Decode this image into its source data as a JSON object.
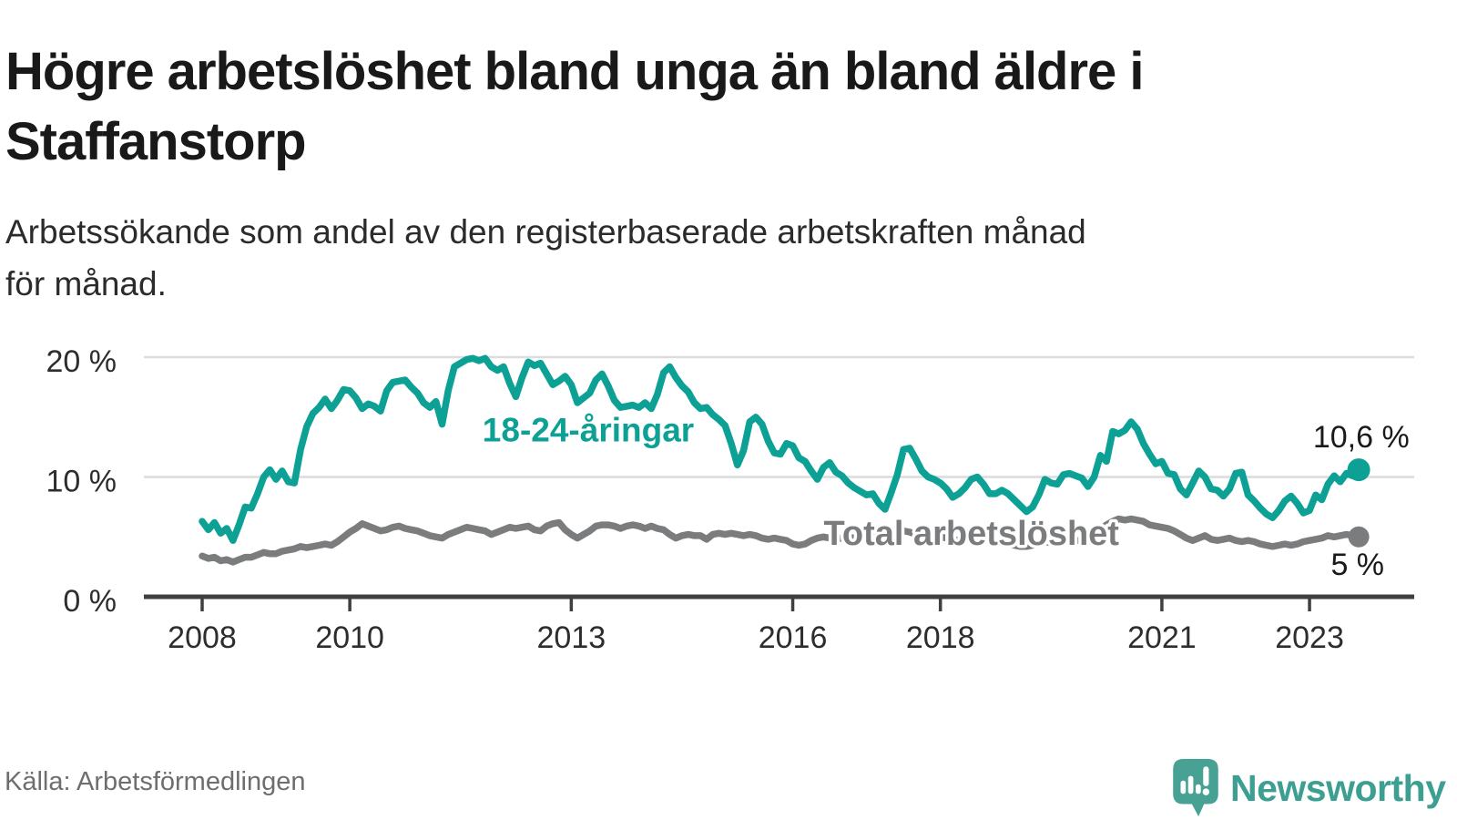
{
  "header": {
    "title_lines": [
      "Högre arbetslöshet bland unga än bland äldre i",
      "Staffanstorp"
    ],
    "subtitle_lines": [
      "Arbetssökande som andel av den registerbaserade arbetskraften månad",
      "för månad."
    ]
  },
  "footer": {
    "source": "Källa: Arbetsförmedlingen",
    "brand": "Newsworthy"
  },
  "colors": {
    "youth_line": "#0DA196",
    "total_line": "#7B7C7E",
    "axis": "#3F3F3F",
    "grid": "#DCDCDC",
    "tick_text": "#2D2D2D",
    "value_text": "#1A1A1A",
    "brand_teal": "#47A295"
  },
  "chart_data": {
    "type": "line",
    "y_unit": "%",
    "x_unit": "year, monthly observations",
    "x_ticks": [
      2008,
      2010,
      2013,
      2016,
      2018,
      2021,
      2023
    ],
    "y_ticks": [
      {
        "value": 0,
        "label": "0 %"
      },
      {
        "value": 10,
        "label": "10 %"
      },
      {
        "value": 20,
        "label": "20 %"
      }
    ],
    "ylim": [
      0,
      21.5
    ],
    "grid": "horizontal",
    "legend_position": "inline-labels",
    "series": [
      {
        "name": "18-24-åringar",
        "color": "#0DA196",
        "line_label": {
          "text": "18-24-åringar",
          "year": 2013.23,
          "pct": 13.9
        },
        "end_label": {
          "text": "10,6 %",
          "year": 2023.7,
          "pct": 13.3
        },
        "end_value": 10.6,
        "start_year": 2008,
        "frequency": "monthly",
        "values": [
          6.3,
          5.6,
          6.2,
          5.3,
          5.7,
          4.7,
          6.0,
          7.5,
          7.4,
          8.6,
          10.0,
          10.6,
          9.8,
          10.5,
          9.6,
          9.5,
          12.3,
          14.2,
          15.3,
          15.8,
          16.5,
          15.7,
          16.4,
          17.3,
          17.2,
          16.6,
          15.7,
          16.1,
          15.9,
          15.5,
          17.2,
          17.9,
          18.0,
          18.1,
          17.5,
          17.0,
          16.2,
          15.8,
          16.3,
          14.4,
          17.2,
          19.2,
          19.5,
          19.8,
          19.9,
          19.7,
          19.9,
          19.2,
          18.9,
          19.2,
          17.8,
          16.7,
          18.3,
          19.6,
          19.3,
          19.5,
          18.6,
          17.7,
          18.0,
          18.4,
          17.7,
          16.2,
          16.6,
          17.0,
          18.1,
          18.6,
          17.6,
          16.4,
          15.8,
          15.9,
          16.0,
          15.8,
          16.2,
          15.7,
          16.9,
          18.7,
          19.2,
          18.3,
          17.6,
          17.1,
          16.2,
          15.7,
          15.8,
          15.2,
          14.8,
          14.3,
          12.8,
          11.0,
          12.2,
          14.6,
          15.0,
          14.4,
          13.0,
          12.0,
          11.9,
          12.8,
          12.6,
          11.6,
          11.3,
          10.5,
          9.8,
          10.8,
          11.2,
          10.4,
          10.1,
          9.5,
          9.1,
          8.8,
          8.5,
          8.6,
          7.8,
          7.3,
          8.7,
          10.2,
          12.3,
          12.4,
          11.5,
          10.5,
          10.0,
          9.8,
          9.5,
          9.0,
          8.3,
          8.6,
          9.1,
          9.8,
          10.0,
          9.4,
          8.6,
          8.6,
          8.9,
          8.6,
          8.1,
          7.6,
          7.1,
          7.5,
          8.5,
          9.8,
          9.5,
          9.4,
          10.2,
          10.3,
          10.1,
          9.9,
          9.2,
          10.0,
          11.8,
          11.3,
          13.8,
          13.6,
          13.9,
          14.6,
          14.0,
          12.8,
          11.9,
          11.1,
          11.3,
          10.3,
          10.2,
          9.0,
          8.5,
          9.5,
          10.5,
          10.0,
          9.0,
          8.9,
          8.4,
          9.0,
          10.3,
          10.4,
          8.5,
          8.0,
          7.4,
          6.9,
          6.6,
          7.2,
          8.0,
          8.4,
          7.8,
          7.0,
          7.2,
          8.5,
          8.1,
          9.4,
          10.1,
          9.6,
          10.3,
          10.1,
          10.6
        ]
      },
      {
        "name": "Total arbetslöshet",
        "color": "#7B7C7E",
        "line_label": {
          "text": "Total arbetslöshet",
          "year": 2018.42,
          "pct": 5.25
        },
        "end_label": {
          "text": "5 %",
          "year": 2023.65,
          "pct": 2.65
        },
        "end_value": 5.0,
        "start_year": 2008,
        "frequency": "monthly",
        "values": [
          3.4,
          3.2,
          3.3,
          3.0,
          3.1,
          2.9,
          3.1,
          3.3,
          3.3,
          3.5,
          3.7,
          3.6,
          3.6,
          3.8,
          3.9,
          4.0,
          4.2,
          4.1,
          4.2,
          4.3,
          4.4,
          4.3,
          4.6,
          5.0,
          5.4,
          5.7,
          6.1,
          5.9,
          5.7,
          5.5,
          5.6,
          5.8,
          5.9,
          5.7,
          5.6,
          5.5,
          5.3,
          5.1,
          5.0,
          4.9,
          5.2,
          5.4,
          5.6,
          5.8,
          5.7,
          5.6,
          5.5,
          5.2,
          5.4,
          5.6,
          5.8,
          5.7,
          5.8,
          5.9,
          5.6,
          5.5,
          5.9,
          6.1,
          6.2,
          5.6,
          5.2,
          4.9,
          5.2,
          5.5,
          5.9,
          6.0,
          6.0,
          5.9,
          5.7,
          5.9,
          6.0,
          5.9,
          5.7,
          5.9,
          5.7,
          5.6,
          5.2,
          4.9,
          5.1,
          5.2,
          5.1,
          5.1,
          4.8,
          5.2,
          5.3,
          5.2,
          5.3,
          5.2,
          5.1,
          5.2,
          5.1,
          4.9,
          4.8,
          4.9,
          4.8,
          4.7,
          4.4,
          4.3,
          4.4,
          4.7,
          4.9,
          5.0,
          4.9,
          4.8,
          4.9,
          5.0,
          4.9,
          4.8,
          4.9,
          5.0,
          4.8,
          4.7,
          5.0,
          5.3,
          5.5,
          5.4,
          5.2,
          5.1,
          5.0,
          4.9,
          5.0,
          4.9,
          4.8,
          4.7,
          4.8,
          4.9,
          5.0,
          4.9,
          4.7,
          4.6,
          4.5,
          4.4,
          4.3,
          4.2,
          4.2,
          4.3,
          4.5,
          4.6,
          4.5,
          4.6,
          4.7,
          4.8,
          4.7,
          4.7,
          4.8,
          5.0,
          5.6,
          6.0,
          6.3,
          6.5,
          6.4,
          6.5,
          6.4,
          6.3,
          6.0,
          5.9,
          5.8,
          5.7,
          5.5,
          5.2,
          4.9,
          4.7,
          4.9,
          5.1,
          4.8,
          4.7,
          4.8,
          4.9,
          4.7,
          4.6,
          4.7,
          4.6,
          4.4,
          4.3,
          4.2,
          4.3,
          4.4,
          4.3,
          4.4,
          4.6,
          4.7,
          4.8,
          4.9,
          5.1,
          5.0,
          5.1,
          5.2,
          5.1,
          5.0
        ]
      }
    ]
  }
}
